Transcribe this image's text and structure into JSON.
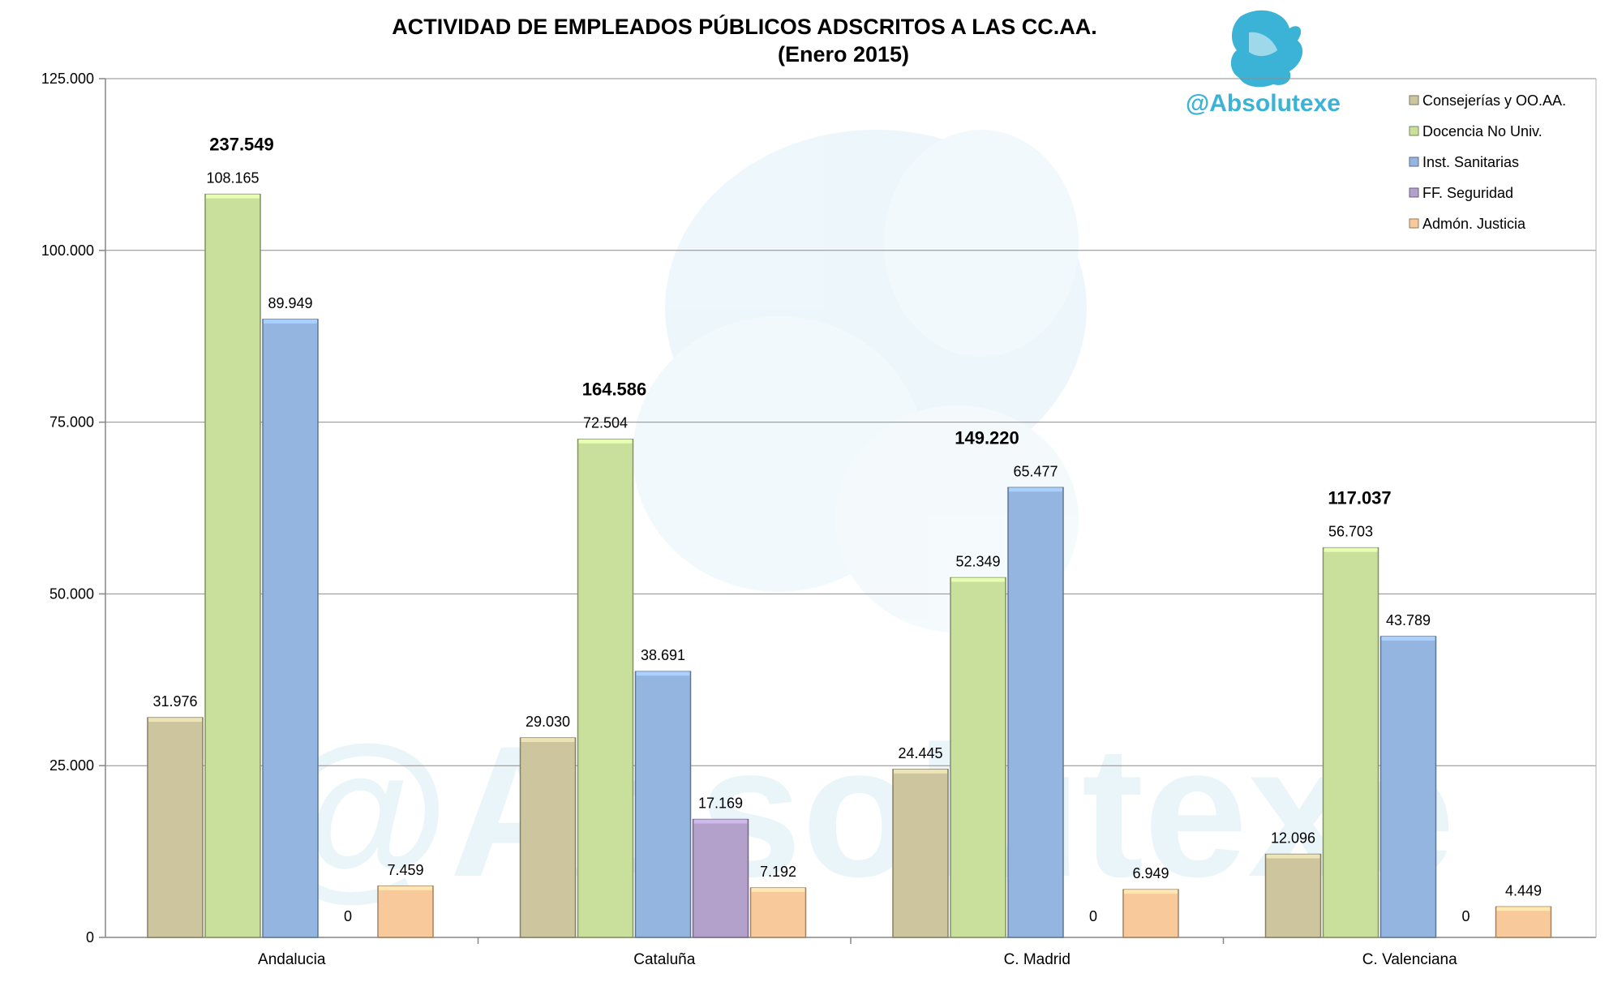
{
  "brand_text": "@Absolutexe",
  "brand_icon": "griffin-logo",
  "watermark_text": "@Absolutexe",
  "chart_data": {
    "type": "bar",
    "title": "ACTIVIDAD DE EMPLEADOS PÚBLICOS ADSCRITOS A LAS CC.AA.",
    "subtitle": "(Enero 2015)",
    "xlabel": "",
    "ylabel": "",
    "ylim": [
      0,
      125000
    ],
    "yticks": [
      {
        "value": 0,
        "label": "0"
      },
      {
        "value": 25000,
        "label": "25.000"
      },
      {
        "value": 50000,
        "label": "50.000"
      },
      {
        "value": 75000,
        "label": "75.000"
      },
      {
        "value": 100000,
        "label": "100.000"
      },
      {
        "value": 125000,
        "label": "125.000"
      }
    ],
    "grid": true,
    "legend_position": "top-right",
    "categories": [
      "Andalucia",
      "Cataluña",
      "C. Madrid",
      "C. Valenciana"
    ],
    "totals": [
      "237.549",
      "164.586",
      "149.220",
      "117.037"
    ],
    "series": [
      {
        "name": "Consejerías y OO.AA.",
        "color": "#cdc59e",
        "values": [
          31976,
          29030,
          24445,
          12096
        ],
        "labels": [
          "31.976",
          "29.030",
          "24.445",
          "12.096"
        ]
      },
      {
        "name": "Docencia No Univ.",
        "color": "#c9df9c",
        "values": [
          108165,
          72504,
          52349,
          56703
        ],
        "labels": [
          "108.165",
          "72.504",
          "52.349",
          "56.703"
        ]
      },
      {
        "name": "Inst. Sanitarias",
        "color": "#93b5e0",
        "values": [
          89949,
          38691,
          65477,
          43789
        ],
        "labels": [
          "89.949",
          "38.691",
          "65.477",
          "43.789"
        ]
      },
      {
        "name": "FF. Seguridad",
        "color": "#b3a1cc",
        "values": [
          0,
          17169,
          0,
          0
        ],
        "labels": [
          "0",
          "17.169",
          "0",
          "0"
        ]
      },
      {
        "name": "Admón. Justicia",
        "color": "#f8c99a",
        "values": [
          7459,
          7192,
          6949,
          4449
        ],
        "labels": [
          "7.459",
          "7.192",
          "6.949",
          "4.449"
        ]
      }
    ]
  }
}
